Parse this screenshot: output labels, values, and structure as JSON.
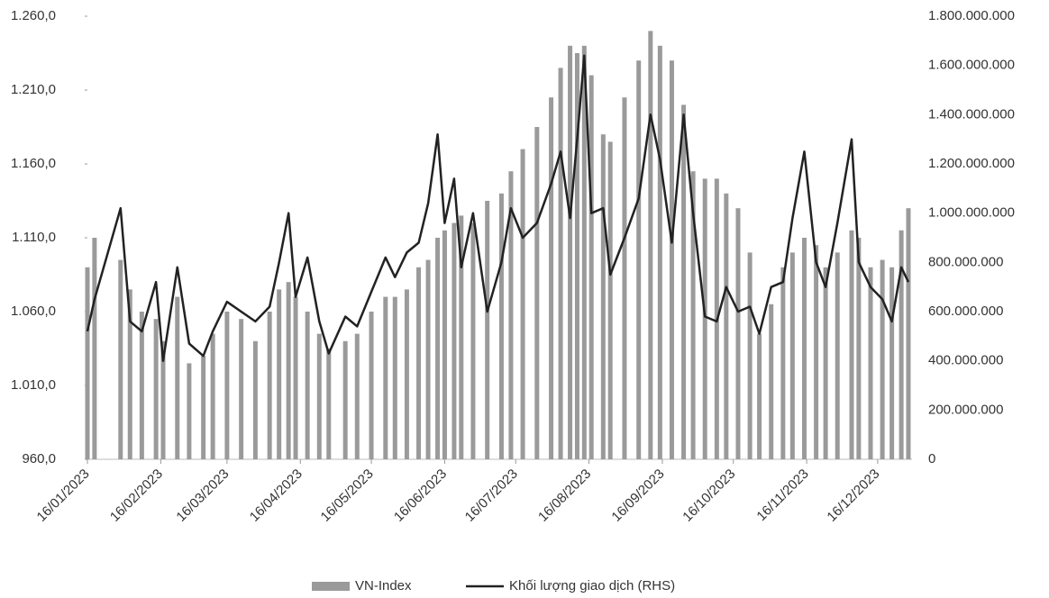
{
  "chart_data": {
    "type": "bar-line",
    "x": [
      "16/01/2023",
      "19/01/2023",
      "30/01/2023",
      "03/02/2023",
      "08/02/2023",
      "14/02/2023",
      "17/02/2023",
      "23/02/2023",
      "28/02/2023",
      "06/03/2023",
      "10/03/2023",
      "16/03/2023",
      "22/03/2023",
      "28/03/2023",
      "03/04/2023",
      "07/04/2023",
      "11/04/2023",
      "14/04/2023",
      "19/04/2023",
      "24/04/2023",
      "28/04/2023",
      "05/05/2023",
      "10/05/2023",
      "16/05/2023",
      "22/05/2023",
      "26/05/2023",
      "31/05/2023",
      "05/06/2023",
      "09/06/2023",
      "13/06/2023",
      "16/06/2023",
      "20/06/2023",
      "23/06/2023",
      "28/06/2023",
      "04/07/2023",
      "10/07/2023",
      "14/07/2023",
      "19/07/2023",
      "25/07/2023",
      "31/07/2023",
      "04/08/2023",
      "08/08/2023",
      "11/08/2023",
      "14/08/2023",
      "17/08/2023",
      "22/08/2023",
      "25/08/2023",
      "31/08/2023",
      "06/09/2023",
      "11/09/2023",
      "15/09/2023",
      "20/09/2023",
      "25/09/2023",
      "29/09/2023",
      "04/10/2023",
      "09/10/2023",
      "13/10/2023",
      "18/10/2023",
      "23/10/2023",
      "27/10/2023",
      "01/11/2023",
      "06/11/2023",
      "10/11/2023",
      "15/11/2023",
      "20/11/2023",
      "24/11/2023",
      "29/11/2023",
      "05/12/2023",
      "08/12/2023",
      "13/12/2023",
      "18/12/2023",
      "22/12/2023",
      "26/12/2023",
      "29/12/2023"
    ],
    "series": [
      {
        "name": "VN-Index",
        "color": "#9a9a9a",
        "axis": "y",
        "values": [
          1090,
          1110,
          1095,
          1075,
          1060,
          1055,
          1040,
          1070,
          1025,
          1030,
          1045,
          1060,
          1055,
          1040,
          1060,
          1075,
          1080,
          1070,
          1060,
          1045,
          1035,
          1040,
          1045,
          1060,
          1070,
          1070,
          1075,
          1090,
          1095,
          1110,
          1115,
          1120,
          1125,
          1120,
          1135,
          1140,
          1155,
          1170,
          1185,
          1205,
          1225,
          1240,
          1235,
          1240,
          1220,
          1180,
          1175,
          1205,
          1230,
          1250,
          1240,
          1230,
          1200,
          1155,
          1150,
          1150,
          1140,
          1130,
          1100,
          1045,
          1065,
          1090,
          1100,
          1110,
          1105,
          1090,
          1100,
          1115,
          1110,
          1090,
          1095,
          1090,
          1115,
          1130
        ]
      },
      {
        "name": "Khối lượng giao dịch (RHS)",
        "color": "#222222",
        "axis": "y2",
        "values": [
          520000000,
          650000000,
          1020000000,
          560000000,
          520000000,
          720000000,
          400000000,
          780000000,
          470000000,
          420000000,
          520000000,
          640000000,
          600000000,
          560000000,
          620000000,
          800000000,
          1000000000,
          660000000,
          820000000,
          560000000,
          430000000,
          580000000,
          540000000,
          680000000,
          820000000,
          740000000,
          840000000,
          880000000,
          1040000000,
          1320000000,
          960000000,
          1140000000,
          780000000,
          1000000000,
          600000000,
          800000000,
          1020000000,
          900000000,
          960000000,
          1120000000,
          1250000000,
          980000000,
          1300000000,
          1640000000,
          1000000000,
          1020000000,
          750000000,
          900000000,
          1060000000,
          1400000000,
          1220000000,
          880000000,
          1400000000,
          1000000000,
          580000000,
          560000000,
          700000000,
          600000000,
          620000000,
          510000000,
          700000000,
          720000000,
          980000000,
          1250000000,
          800000000,
          700000000,
          960000000,
          1300000000,
          800000000,
          700000000,
          650000000,
          560000000,
          780000000,
          720000000
        ]
      }
    ],
    "xlim": [
      "16/01/2023",
      "29/12/2023"
    ],
    "xticks": [
      "16/01/2023",
      "16/02/2023",
      "16/03/2023",
      "16/04/2023",
      "16/05/2023",
      "16/06/2023",
      "16/07/2023",
      "16/08/2023",
      "16/09/2023",
      "16/10/2023",
      "16/11/2023",
      "16/12/2023"
    ],
    "ylim": [
      960,
      1260
    ],
    "yticks": [
      {
        "value": 960,
        "label": "960,0"
      },
      {
        "value": 1010,
        "label": "1.010,0"
      },
      {
        "value": 1060,
        "label": "1.060,0"
      },
      {
        "value": 1110,
        "label": "1.110,0"
      },
      {
        "value": 1160,
        "label": "1.160,0"
      },
      {
        "value": 1210,
        "label": "1.210,0"
      },
      {
        "value": 1260,
        "label": "1.260,0"
      }
    ],
    "y2lim": [
      0,
      1800000000
    ],
    "y2ticks": [
      0,
      {
        "value": 200000000,
        "label": "200.000.000"
      },
      {
        "value": 400000000,
        "label": "400.000.000"
      },
      {
        "value": 600000000,
        "label": "600.000.000"
      },
      {
        "value": 800000000,
        "label": "800.000.000"
      },
      {
        "value": 1000000000,
        "label": "1.000.000.000"
      },
      {
        "value": 1200000000,
        "label": "1.200.000.000"
      },
      {
        "value": 1400000000,
        "label": "1.400.000.000"
      },
      {
        "value": 1600000000,
        "label": "1.600.000.000"
      },
      {
        "value": 1800000000,
        "label": "1.800.000.000"
      }
    ],
    "grid": false,
    "legend": "bottom"
  }
}
